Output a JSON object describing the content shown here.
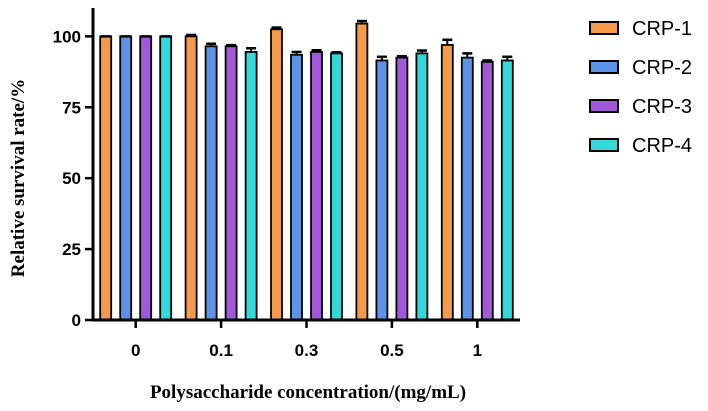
{
  "chart_data": {
    "type": "bar",
    "xlabel": "Polysaccharide concentration/(mg/mL)",
    "ylabel": "Relative survival rate/%",
    "categories": [
      "0",
      "0.1",
      "0.3",
      "0.5",
      "1"
    ],
    "ylim": [
      0,
      110
    ],
    "yticks": [
      "0",
      "25",
      "50",
      "75",
      "100"
    ],
    "legend_position": "right",
    "grid": false,
    "error_bars": true,
    "series": [
      {
        "name": "CRP-1",
        "color": "#F59A4B",
        "values": [
          100,
          100,
          102.5,
          104.5,
          97
        ],
        "errors": [
          0,
          0.5,
          0.6,
          0.9,
          1.8
        ]
      },
      {
        "name": "CRP-2",
        "color": "#5B93E6",
        "values": [
          100,
          96.5,
          93.5,
          91.5,
          92.5
        ],
        "errors": [
          0,
          0.9,
          1.0,
          1.3,
          1.5
        ]
      },
      {
        "name": "CRP-3",
        "color": "#A259D9",
        "values": [
          100,
          96.5,
          94.5,
          92.5,
          91
        ],
        "errors": [
          0,
          0.4,
          0.6,
          0.5,
          0.5
        ]
      },
      {
        "name": "CRP-4",
        "color": "#33D8D8",
        "values": [
          100,
          94.5,
          94,
          94,
          91.5
        ],
        "errors": [
          0,
          1.3,
          0.4,
          1.0,
          1.3
        ]
      }
    ]
  }
}
